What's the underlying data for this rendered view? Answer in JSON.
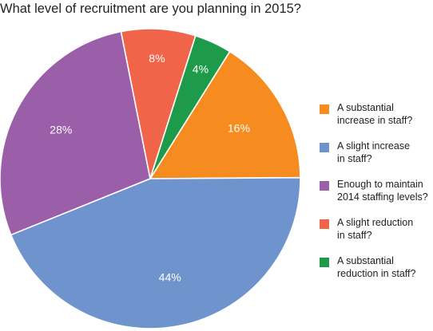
{
  "chart_data": {
    "type": "pie",
    "title": "What level of recruitment are you planning in 2015?",
    "slices": [
      {
        "label": "A substantial\nincrease in staff?",
        "value": 16,
        "display": "16%",
        "color": "#f68c1f"
      },
      {
        "label": "A slight increase\nin staff?",
        "value": 44,
        "display": "44%",
        "color": "#6f93cc"
      },
      {
        "label": "Enough to maintain\n2014 staffing levels?",
        "value": 28,
        "display": "28%",
        "color": "#9b5ea8"
      },
      {
        "label": "A slight reduction\nin staff?",
        "value": 8,
        "display": "8%",
        "color": "#f0654a"
      },
      {
        "label": "A substantial\nreduction in staff?",
        "value": 4,
        "display": "4%",
        "color": "#1e9a4b"
      }
    ],
    "start_angle_deg": -58,
    "direction": "clockwise",
    "legend_position": "right"
  }
}
